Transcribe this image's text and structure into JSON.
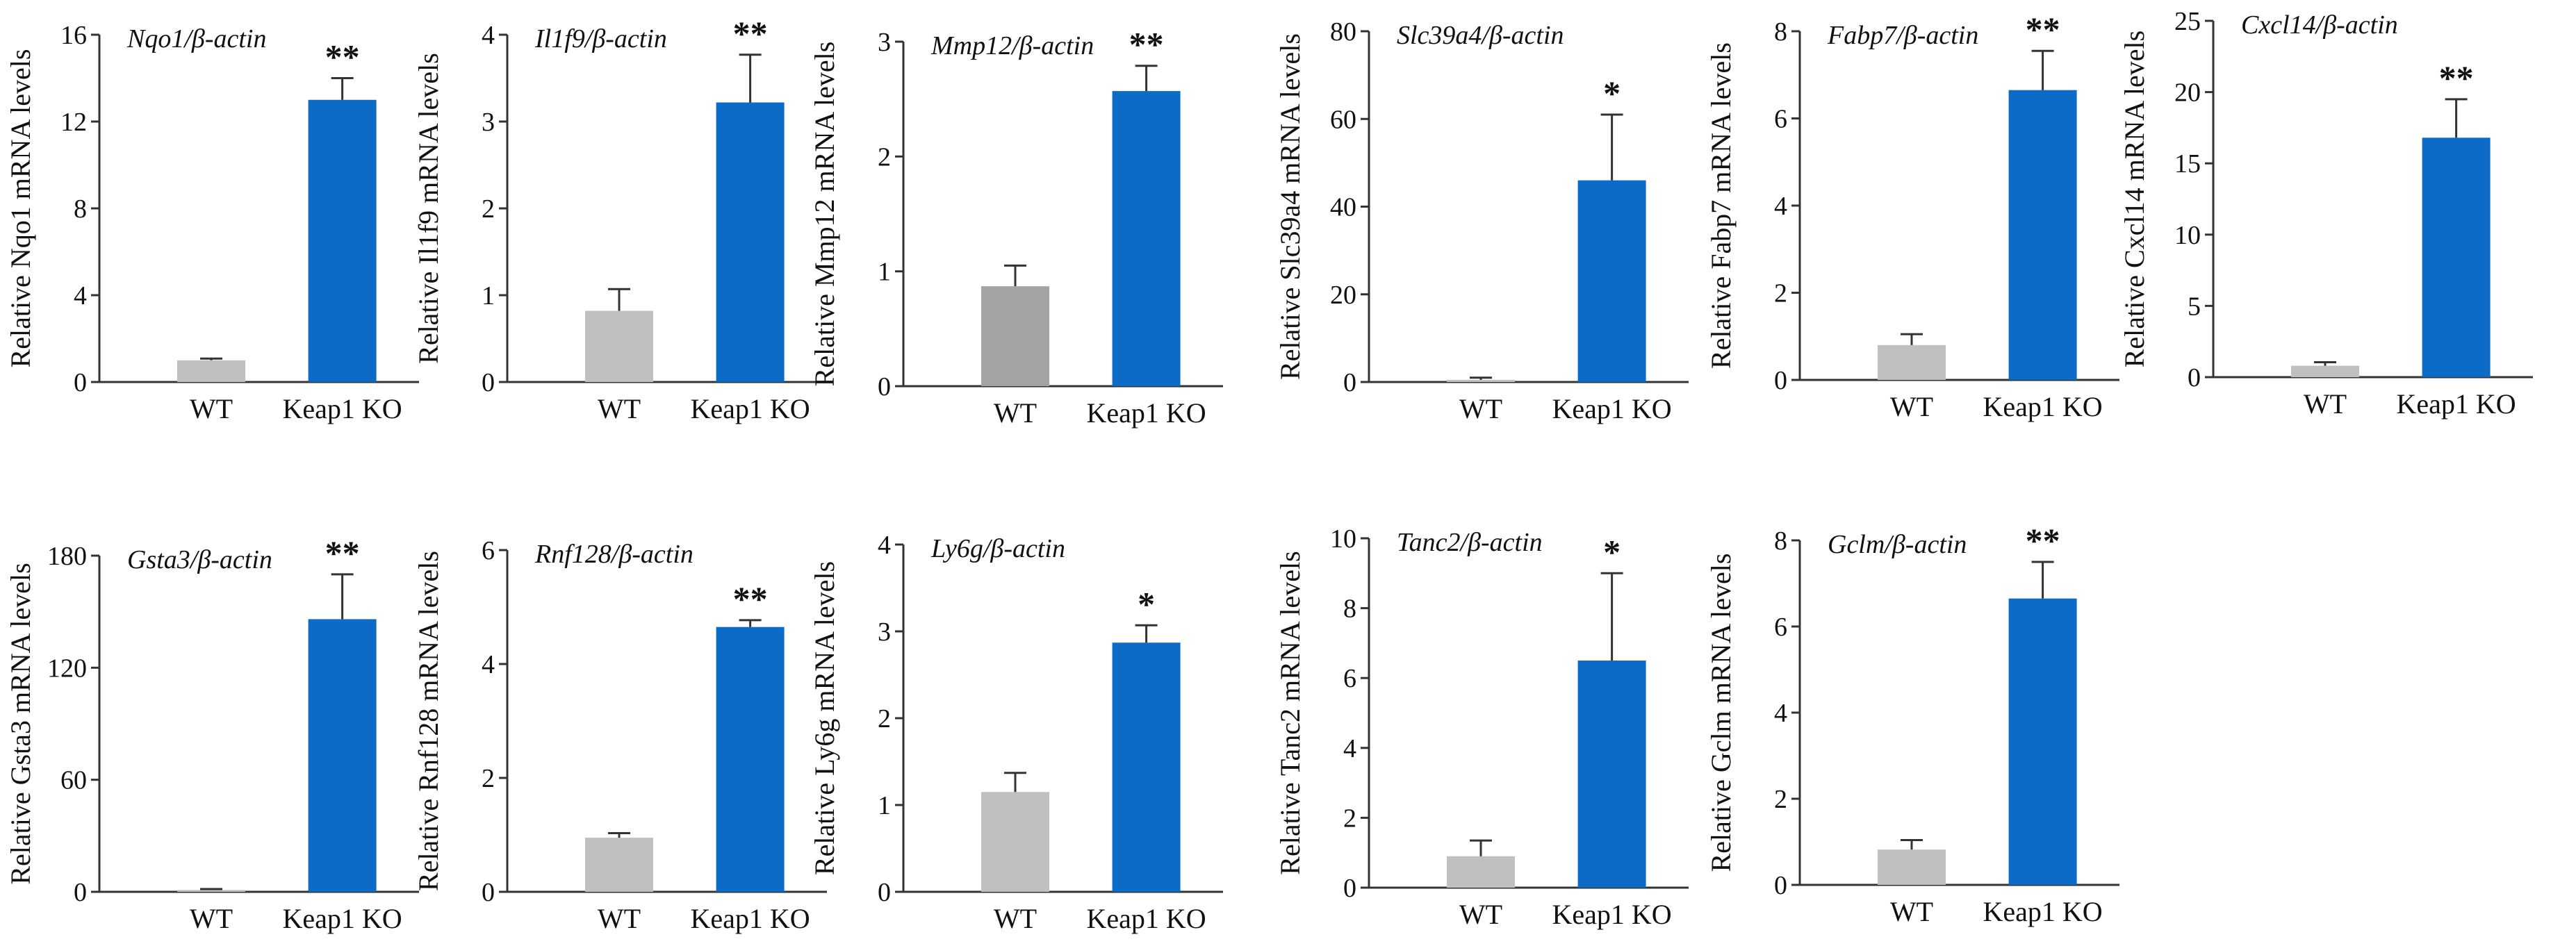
{
  "figure": {
    "panels": 11,
    "ylabel_prefix": "Relative ",
    "ylabel_suffix": " mRNA levels",
    "colors": {
      "wt": "#c0c0c0",
      "wt_dark": "#a3a3a3",
      "ko": "#0b6bc6",
      "axis": "#333333",
      "text": "#111111"
    }
  },
  "chart_data": [
    {
      "type": "bar",
      "title": "Nqo1/β-actin",
      "gene": "Nqo1",
      "ylabel": "Relative Nqo1 mRNA levels",
      "categories": [
        "WT",
        "Keap1 KO"
      ],
      "values": [
        1,
        13
      ],
      "errors": [
        0.08,
        1.0
      ],
      "significance": "**",
      "ylim": [
        0,
        16
      ],
      "yticks": [
        0,
        4,
        8,
        12,
        16
      ],
      "wt_color": "#c0c0c0"
    },
    {
      "type": "bar",
      "title": "Il1f9/β-actin",
      "gene": "Il1f9",
      "ylabel": "Relative Il1f9 mRNA levels",
      "categories": [
        "WT",
        "Keap1 KO"
      ],
      "values": [
        0.82,
        3.22
      ],
      "errors": [
        0.25,
        0.55
      ],
      "significance": "**",
      "ylim": [
        0,
        4
      ],
      "yticks": [
        0,
        1,
        2,
        3,
        4
      ],
      "wt_color": "#c0c0c0"
    },
    {
      "type": "bar",
      "title": "Mmp12/β-actin",
      "gene": "Mmp12",
      "ylabel": "Relative Mmp12 mRNA levels",
      "categories": [
        "WT",
        "Keap1 KO"
      ],
      "values": [
        0.87,
        2.57
      ],
      "errors": [
        0.18,
        0.22
      ],
      "significance": "**",
      "ylim": [
        0,
        3
      ],
      "yticks": [
        0,
        1,
        2,
        3
      ],
      "wt_color": "#a3a3a3"
    },
    {
      "type": "bar",
      "title": "Slc39a4/β-actin",
      "gene": "Slc39a4",
      "ylabel": "Relative Slc39a4 mRNA levels",
      "categories": [
        "WT",
        "Keap1 KO"
      ],
      "values": [
        0.5,
        46
      ],
      "errors": [
        0.5,
        15
      ],
      "significance": "*",
      "ylim": [
        0,
        80
      ],
      "yticks": [
        0,
        20,
        40,
        60,
        80
      ],
      "wt_color": "#c0c0c0"
    },
    {
      "type": "bar",
      "title": "Fabp7/β-actin",
      "gene": "Fabp7",
      "ylabel": "Relative Fabp7 mRNA levels",
      "categories": [
        "WT",
        "Keap1 KO"
      ],
      "values": [
        0.8,
        6.65
      ],
      "errors": [
        0.25,
        0.9
      ],
      "significance": "**",
      "ylim": [
        0,
        8
      ],
      "yticks": [
        0,
        2,
        4,
        6,
        8
      ],
      "wt_color": "#c0c0c0"
    },
    {
      "type": "bar",
      "title": "Cxcl14/β-actin",
      "gene": "Cxcl14",
      "ylabel": "Relative Cxcl14 mRNA levels",
      "categories": [
        "WT",
        "Keap1 KO"
      ],
      "values": [
        0.8,
        16.8
      ],
      "errors": [
        0.25,
        2.7
      ],
      "significance": "**",
      "ylim": [
        0,
        25
      ],
      "yticks": [
        0,
        5,
        10,
        15,
        20,
        25
      ],
      "wt_color": "#c0c0c0"
    },
    {
      "type": "bar",
      "title": "Gsta3/β-actin",
      "gene": "Gsta3",
      "ylabel": "Relative Gsta3 mRNA levels",
      "categories": [
        "WT",
        "Keap1 KO"
      ],
      "values": [
        1,
        146
      ],
      "errors": [
        0.5,
        24
      ],
      "significance": "**",
      "ylim": [
        0,
        180
      ],
      "yticks": [
        0,
        60,
        120,
        180
      ],
      "wt_color": "#c0c0c0"
    },
    {
      "type": "bar",
      "title": "Rnf128/β-actin",
      "gene": "Rnf128",
      "ylabel": "Relative Rnf128 mRNA levels",
      "categories": [
        "WT",
        "Keap1 KO"
      ],
      "values": [
        0.95,
        4.65
      ],
      "errors": [
        0.08,
        0.12
      ],
      "significance": "**",
      "ylim": [
        0,
        6
      ],
      "yticks": [
        0,
        2,
        4,
        6
      ],
      "wt_color": "#c0c0c0"
    },
    {
      "type": "bar",
      "title": "Ly6g/β-actin",
      "gene": "Ly6g",
      "ylabel": "Relative Ly6g mRNA levels",
      "categories": [
        "WT",
        "Keap1 KO"
      ],
      "values": [
        1.15,
        2.87
      ],
      "errors": [
        0.22,
        0.2
      ],
      "significance": "*",
      "ylim": [
        0,
        4
      ],
      "yticks": [
        0,
        1,
        2,
        3,
        4
      ],
      "wt_color": "#c0c0c0"
    },
    {
      "type": "bar",
      "title": "Tanc2/β-actin",
      "gene": "Tanc2",
      "ylabel": "Relative Tanc2 mRNA levels",
      "categories": [
        "WT",
        "Keap1 KO"
      ],
      "values": [
        0.9,
        6.5
      ],
      "errors": [
        0.45,
        2.5
      ],
      "significance": "*",
      "ylim": [
        0,
        10
      ],
      "yticks": [
        0,
        2,
        4,
        6,
        8,
        10
      ],
      "wt_color": "#c0c0c0"
    },
    {
      "type": "bar",
      "title": "Gclm/β-actin",
      "gene": "Gclm",
      "ylabel": "Relative Gclm mRNA levels",
      "categories": [
        "WT",
        "Keap1 KO"
      ],
      "values": [
        0.82,
        6.65
      ],
      "errors": [
        0.22,
        0.85
      ],
      "significance": "**",
      "ylim": [
        0,
        8
      ],
      "yticks": [
        0,
        2,
        4,
        6,
        8
      ],
      "wt_color": "#c0c0c0"
    }
  ]
}
